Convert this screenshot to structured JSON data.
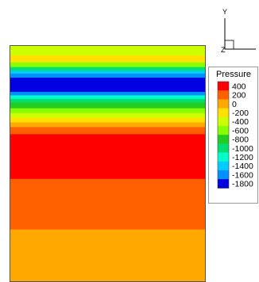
{
  "chart_data": {
    "type": "heatmap",
    "title": "",
    "legend": {
      "title": "Pressure",
      "placement": "right",
      "levels": [
        "400",
        "200",
        "0",
        "-200",
        "-400",
        "-600",
        "-800",
        "-1000",
        "-1200",
        "-1400",
        "-1600",
        "-1800"
      ],
      "colors": [
        "#ff0000",
        "#ff6000",
        "#ffa800",
        "#ffe000",
        "#ccff00",
        "#88ff00",
        "#22cc22",
        "#00e070",
        "#00ffcc",
        "#00ccff",
        "#0090ff",
        "#0000e0"
      ]
    },
    "axes_triad": {
      "y_label": "Y",
      "z_label": "Z"
    },
    "contour_bands": [
      {
        "from": 0.0,
        "to": 0.04,
        "color": "#ccff00"
      },
      {
        "from": 0.04,
        "to": 0.07,
        "color": "#ffe000"
      },
      {
        "from": 0.07,
        "to": 0.09,
        "color": "#88ff00"
      },
      {
        "from": 0.09,
        "to": 0.105,
        "color": "#00e070"
      },
      {
        "from": 0.105,
        "to": 0.118,
        "color": "#00ccff"
      },
      {
        "from": 0.118,
        "to": 0.135,
        "color": "#0090ff"
      },
      {
        "from": 0.135,
        "to": 0.195,
        "color": "#0000e0"
      },
      {
        "from": 0.195,
        "to": 0.21,
        "color": "#0090ff"
      },
      {
        "from": 0.21,
        "to": 0.225,
        "color": "#00ffcc"
      },
      {
        "from": 0.225,
        "to": 0.24,
        "color": "#00e070"
      },
      {
        "from": 0.24,
        "to": 0.265,
        "color": "#22cc22"
      },
      {
        "from": 0.265,
        "to": 0.285,
        "color": "#88ff00"
      },
      {
        "from": 0.285,
        "to": 0.305,
        "color": "#ccff00"
      },
      {
        "from": 0.305,
        "to": 0.325,
        "color": "#ffe000"
      },
      {
        "from": 0.325,
        "to": 0.345,
        "color": "#ffa800"
      },
      {
        "from": 0.345,
        "to": 0.375,
        "color": "#ff6000"
      },
      {
        "from": 0.375,
        "to": 0.565,
        "color": "#ff0000"
      },
      {
        "from": 0.565,
        "to": 0.78,
        "color": "#ff6000"
      },
      {
        "from": 0.78,
        "to": 1.0,
        "color": "#ffa800"
      }
    ]
  }
}
